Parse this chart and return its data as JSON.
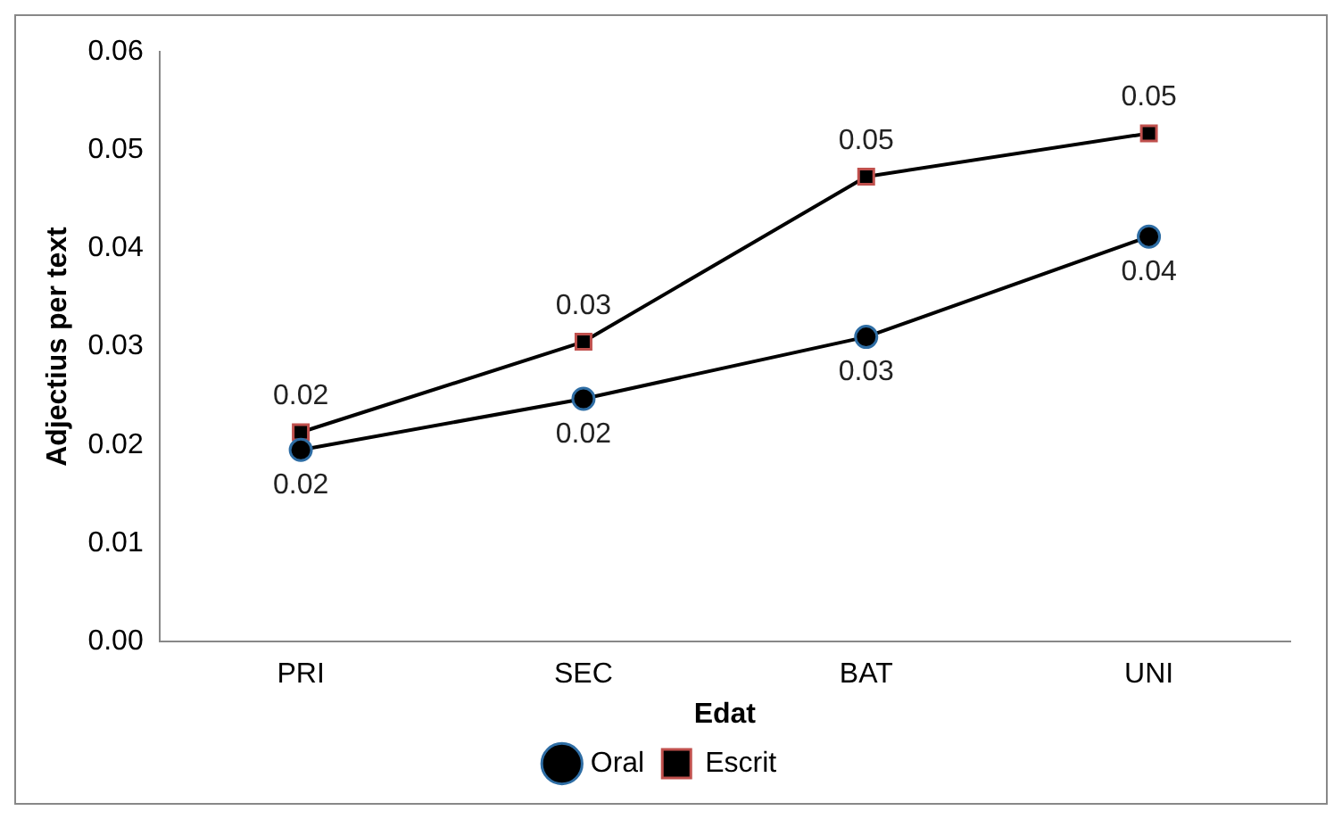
{
  "chart_data": {
    "type": "line",
    "xlabel": "Edat",
    "ylabel": "Adjectius per text",
    "categories": [
      "PRI",
      "SEC",
      "BAT",
      "UNI"
    ],
    "series": [
      {
        "name": "Oral",
        "color": "#000000",
        "marker": "circle",
        "values": [
          0.0195,
          0.0247,
          0.031,
          0.0412
        ],
        "value_labels": [
          "0.02",
          "0.02",
          "0.03",
          "0.04"
        ]
      },
      {
        "name": "Escrit",
        "color": "#000000",
        "marker": "square",
        "values": [
          0.0213,
          0.0305,
          0.0473,
          0.0517
        ],
        "value_labels": [
          "0.02",
          "0.03",
          "0.05",
          "0.05"
        ]
      }
    ],
    "ylim": [
      0,
      0.06
    ],
    "yticks": [
      {
        "value": 0,
        "label": "0.00"
      },
      {
        "value": 0.01,
        "label": "0.01"
      },
      {
        "value": 0.02,
        "label": "0.02"
      },
      {
        "value": 0.03,
        "label": "0.03"
      },
      {
        "value": 0.04,
        "label": "0.04"
      },
      {
        "value": 0.05,
        "label": "0.05"
      },
      {
        "value": 0.06,
        "label": "0.06"
      }
    ],
    "grid": false,
    "legend": "bottom",
    "line_style": "solid"
  }
}
